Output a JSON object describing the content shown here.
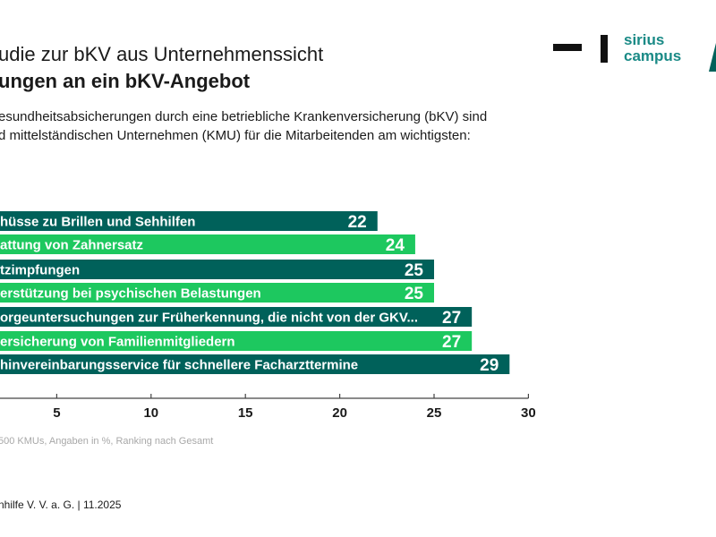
{
  "header": {
    "title_line1": "udie zur bKV aus Unternehmenssicht",
    "title_line2": "ungen an ein bKV-Angebot",
    "description_line1": "esundheitsabsicherungen durch eine betriebliche Krankenversicherung (bKV) sind",
    "description_line2": "d mittelständischen Unternehmen (KMU) für die Mitarbeitenden am wichtigsten:"
  },
  "logo": {
    "text": "sirius\ncampus",
    "color": "#1a8a86"
  },
  "chart_data": {
    "type": "bar",
    "orientation": "horizontal",
    "categories": [
      "hüsse zu Brillen und Sehhilfen",
      "attung von Zahnersatz",
      "tzimpfungen",
      "erstützung bei psychischen Belastungen",
      "orgeuntersuchungen zur Früherkennung, die nicht von der GKV...",
      "ersicherung von Familienmitgliedern",
      "hinvereinbarungsservice für schnellere Facharzttermine"
    ],
    "values": [
      22,
      24,
      25,
      25,
      27,
      27,
      29
    ],
    "colors": [
      "#00615a",
      "#1dc85f",
      "#00615a",
      "#1dc85f",
      "#00615a",
      "#1dc85f",
      "#00615a"
    ],
    "xlim": [
      0,
      30
    ],
    "xticks": [
      5,
      10,
      15,
      20,
      25,
      30
    ],
    "grid": false
  },
  "footnote": "500 KMUs, Angaben in %, Ranking nach Gesamt",
  "source": "nhilfe V. V. a. G.   |   11.2025"
}
